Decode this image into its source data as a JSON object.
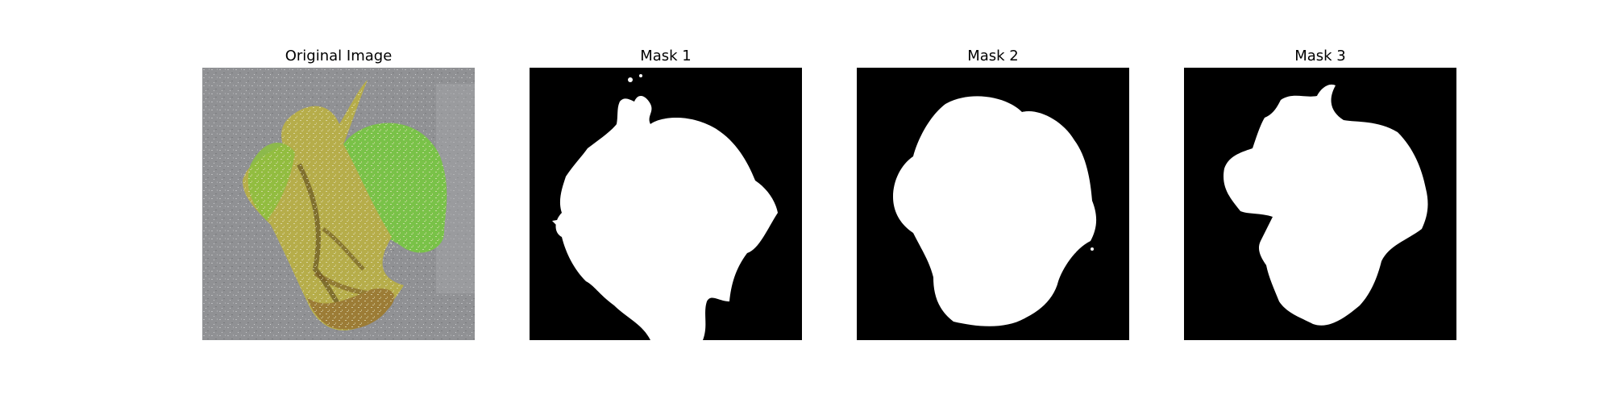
{
  "panels": [
    {
      "title": "Original Image",
      "kind": "photo"
    },
    {
      "title": "Mask 1",
      "kind": "mask"
    },
    {
      "title": "Mask 2",
      "kind": "mask"
    },
    {
      "title": "Mask 3",
      "kind": "mask"
    }
  ],
  "colors": {
    "background": "#ffffff",
    "mask_background": "#000000",
    "mask_foreground": "#ffffff",
    "photo_background": "#8f9092",
    "leaf_green": "#7cc24a",
    "leaf_yellow": "#b3a845",
    "leaf_brown": "#8a6a2f"
  }
}
